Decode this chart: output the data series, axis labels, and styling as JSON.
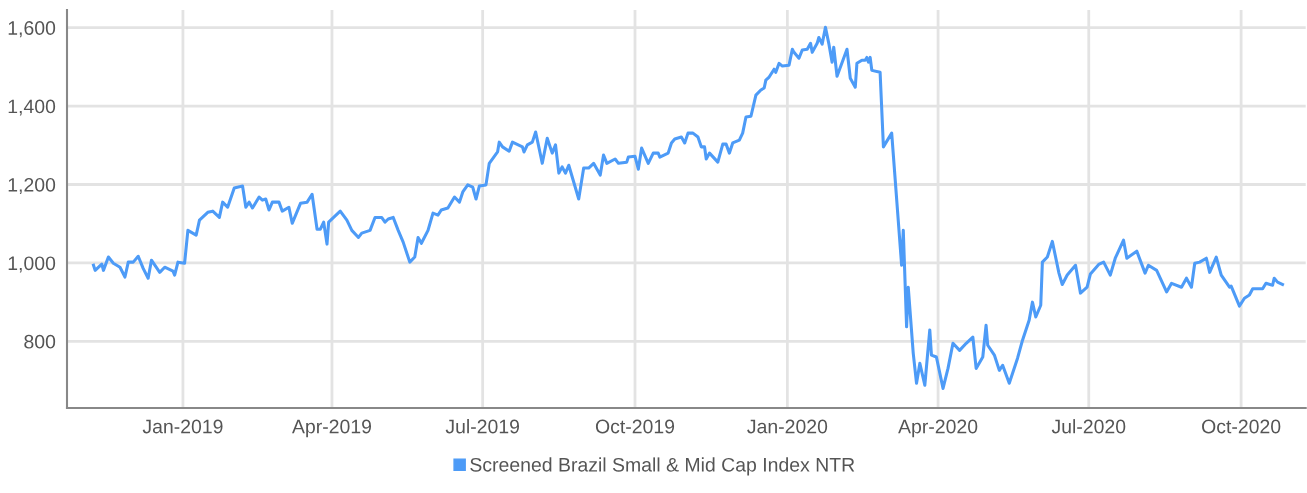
{
  "chart_data": {
    "type": "line",
    "xlim": [
      "2018-10-23",
      "2020-11-09"
    ],
    "xticks": [
      {
        "value": "2019-01-01",
        "label": "Jan-2019"
      },
      {
        "value": "2019-04-01",
        "label": "Apr-2019"
      },
      {
        "value": "2019-07-01",
        "label": "Jul-2019"
      },
      {
        "value": "2019-10-01",
        "label": "Oct-2019"
      },
      {
        "value": "2020-01-01",
        "label": "Jan-2020"
      },
      {
        "value": "2020-04-01",
        "label": "Apr-2020"
      },
      {
        "value": "2020-07-01",
        "label": "Jul-2020"
      },
      {
        "value": "2020-10-01",
        "label": "Oct-2020"
      }
    ],
    "ylim": [
      630,
      1645
    ],
    "yticks": [
      800,
      {
        "value": 1000,
        "label": "1,000"
      },
      {
        "value": 1200,
        "label": "1,200"
      },
      {
        "value": 1400,
        "label": "1,400"
      },
      {
        "value": 1600,
        "label": "1,600"
      }
    ],
    "grid": true,
    "legend": "bottom",
    "marker": "none",
    "line_style": "solid",
    "x": [
      "2018-11-08",
      "2018-11-09",
      "2018-11-13",
      "2018-11-14",
      "2018-11-17",
      "2018-11-20",
      "2018-11-24",
      "2018-11-27",
      "2018-11-29",
      "2018-12-02",
      "2018-12-05",
      "2018-12-08",
      "2018-12-11",
      "2018-12-13",
      "2018-12-18",
      "2018-12-21",
      "2018-12-26",
      "2018-12-27",
      "2018-12-29",
      "2019-01-02",
      "2019-01-04",
      "2019-01-09",
      "2019-01-11",
      "2019-01-16",
      "2019-01-19",
      "2019-01-23",
      "2019-01-25",
      "2019-01-28",
      "2019-02-01",
      "2019-02-06",
      "2019-02-08",
      "2019-02-10",
      "2019-02-12",
      "2019-02-16",
      "2019-02-18",
      "2019-02-20",
      "2019-02-22",
      "2019-02-24",
      "2019-02-28",
      "2019-03-02",
      "2019-03-06",
      "2019-03-08",
      "2019-03-13",
      "2019-03-17",
      "2019-03-20",
      "2019-03-23",
      "2019-03-25",
      "2019-03-27",
      "2019-03-29",
      "2019-03-30",
      "2019-04-02",
      "2019-04-06",
      "2019-04-10",
      "2019-04-13",
      "2019-04-17",
      "2019-04-19",
      "2019-04-24",
      "2019-04-27",
      "2019-05-01",
      "2019-05-03",
      "2019-05-05",
      "2019-05-08",
      "2019-05-11",
      "2019-05-14",
      "2019-05-18",
      "2019-05-21",
      "2019-05-23",
      "2019-05-25",
      "2019-05-29",
      "2019-06-01",
      "2019-06-04",
      "2019-06-06",
      "2019-06-10",
      "2019-06-14",
      "2019-06-17",
      "2019-06-19",
      "2019-06-22",
      "2019-06-25",
      "2019-06-27",
      "2019-06-29",
      "2019-07-03",
      "2019-07-05",
      "2019-07-10",
      "2019-07-11",
      "2019-07-13",
      "2019-07-17",
      "2019-07-19",
      "2019-07-25",
      "2019-07-26",
      "2019-07-28",
      "2019-07-31",
      "2019-08-02",
      "2019-08-06",
      "2019-08-09",
      "2019-08-12",
      "2019-08-14",
      "2019-08-16",
      "2019-08-18",
      "2019-08-20",
      "2019-08-22",
      "2019-08-28",
      "2019-08-31",
      "2019-09-03",
      "2019-09-06",
      "2019-09-10",
      "2019-09-12",
      "2019-09-14",
      "2019-09-19",
      "2019-09-21",
      "2019-09-26",
      "2019-09-27",
      "2019-10-01",
      "2019-10-03",
      "2019-10-05",
      "2019-10-09",
      "2019-10-12",
      "2019-10-15",
      "2019-10-16",
      "2019-10-21",
      "2019-10-23",
      "2019-10-25",
      "2019-10-29",
      "2019-10-31",
      "2019-11-02",
      "2019-11-05",
      "2019-11-08",
      "2019-11-10",
      "2019-11-12",
      "2019-11-13",
      "2019-11-15",
      "2019-11-20",
      "2019-11-23",
      "2019-11-25",
      "2019-11-27",
      "2019-11-29",
      "2019-12-03",
      "2019-12-05",
      "2019-12-07",
      "2019-12-10",
      "2019-12-13",
      "2019-12-16",
      "2019-12-18",
      "2019-12-19",
      "2019-12-21",
      "2019-12-24",
      "2019-12-25",
      "2019-12-27",
      "2019-12-29",
      "2020-01-02",
      "2020-01-04",
      "2020-01-05",
      "2020-01-08",
      "2020-01-10",
      "2020-01-13",
      "2020-01-15",
      "2020-01-16",
      "2020-01-19",
      "2020-01-20",
      "2020-01-22",
      "2020-01-24",
      "2020-01-26",
      "2020-01-28",
      "2020-01-29",
      "2020-01-31",
      "2020-02-06",
      "2020-02-08",
      "2020-02-11",
      "2020-02-12",
      "2020-02-15",
      "2020-02-17",
      "2020-02-18",
      "2020-02-19",
      "2020-02-20",
      "2020-02-21",
      "2020-02-26",
      "2020-02-28",
      "2020-03-04",
      "2020-03-10",
      "2020-03-11",
      "2020-03-13",
      "2020-03-14",
      "2020-03-17",
      "2020-03-19",
      "2020-03-21",
      "2020-03-24",
      "2020-03-27",
      "2020-03-28",
      "2020-03-31",
      "2020-04-04",
      "2020-04-07",
      "2020-04-10",
      "2020-04-14",
      "2020-04-18",
      "2020-04-22",
      "2020-04-24",
      "2020-04-28",
      "2020-04-30",
      "2020-05-01",
      "2020-05-05",
      "2020-05-08",
      "2020-05-10",
      "2020-05-14",
      "2020-05-19",
      "2020-05-22",
      "2020-05-26",
      "2020-05-28",
      "2020-05-30",
      "2020-06-02",
      "2020-06-03",
      "2020-06-06",
      "2020-06-09",
      "2020-06-13",
      "2020-06-15",
      "2020-06-18",
      "2020-06-23",
      "2020-06-26",
      "2020-06-30",
      "2020-07-02",
      "2020-07-07",
      "2020-07-10",
      "2020-07-14",
      "2020-07-17",
      "2020-07-22",
      "2020-07-24",
      "2020-07-30",
      "2020-08-04",
      "2020-08-06",
      "2020-08-11",
      "2020-08-17",
      "2020-08-20",
      "2020-08-26",
      "2020-08-29",
      "2020-09-01",
      "2020-09-03",
      "2020-09-06",
      "2020-09-10",
      "2020-09-12",
      "2020-09-16",
      "2020-09-19",
      "2020-09-24",
      "2020-09-25",
      "2020-09-30",
      "2020-10-03",
      "2020-10-06",
      "2020-10-08",
      "2020-10-14",
      "2020-10-16",
      "2020-10-20",
      "2020-10-21",
      "2020-10-23",
      "2020-10-26"
    ],
    "series": [
      {
        "name": "Screened Brazil Small & Mid Cap Index NTR",
        "color": "#4d9bf7",
        "values": [
          994,
          981,
          997,
          981,
          1015,
          999,
          989,
          964,
          1002,
          1002,
          1017,
          986,
          961,
          1007,
          976,
          989,
          979,
          969,
          1002,
          999,
          1083,
          1071,
          1109,
          1129,
          1132,
          1116,
          1155,
          1142,
          1191,
          1196,
          1142,
          1155,
          1140,
          1168,
          1160,
          1163,
          1135,
          1155,
          1155,
          1132,
          1142,
          1101,
          1152,
          1155,
          1175,
          1086,
          1086,
          1104,
          1048,
          1104,
          1116,
          1132,
          1109,
          1083,
          1065,
          1076,
          1083,
          1116,
          1116,
          1104,
          1112,
          1116,
          1083,
          1053,
          1002,
          1015,
          1065,
          1050,
          1083,
          1127,
          1122,
          1135,
          1140,
          1168,
          1155,
          1181,
          1199,
          1193,
          1163,
          1196,
          1199,
          1254,
          1283,
          1308,
          1296,
          1285,
          1308,
          1296,
          1283,
          1301,
          1308,
          1334,
          1254,
          1318,
          1280,
          1301,
          1229,
          1245,
          1229,
          1249,
          1163,
          1242,
          1242,
          1254,
          1224,
          1275,
          1254,
          1265,
          1254,
          1257,
          1270,
          1272,
          1239,
          1293,
          1254,
          1280,
          1280,
          1270,
          1280,
          1306,
          1316,
          1321,
          1306,
          1331,
          1331,
          1321,
          1296,
          1296,
          1265,
          1280,
          1257,
          1303,
          1303,
          1280,
          1306,
          1313,
          1331,
          1372,
          1374,
          1428,
          1441,
          1446,
          1466,
          1474,
          1494,
          1486,
          1509,
          1502,
          1504,
          1545,
          1537,
          1522,
          1543,
          1545,
          1560,
          1537,
          1560,
          1575,
          1558,
          1601,
          1560,
          1512,
          1550,
          1476,
          1545,
          1471,
          1448,
          1509,
          1517,
          1517,
          1524,
          1512,
          1524,
          1491,
          1486,
          1296,
          1331,
          994,
          1083,
          837,
          938,
          770,
          693,
          744,
          688,
          829,
          765,
          760,
          680,
          731,
          795,
          777,
          795,
          811,
          731,
          760,
          841,
          790,
          765,
          726,
          739,
          693,
          757,
          803,
          854,
          900,
          862,
          892,
          1002,
          1015,
          1055,
          974,
          945,
          969,
          994,
          923,
          938,
          972,
          996,
          1002,
          969,
          1012,
          1058,
          1012,
          1030,
          974,
          994,
          981,
          926,
          948,
          938,
          961,
          938,
          999,
          1002,
          1012,
          976,
          1015,
          969,
          938,
          941,
          890,
          910,
          918,
          934,
          934,
          948,
          943,
          961,
          951,
          945
        ]
      }
    ]
  }
}
